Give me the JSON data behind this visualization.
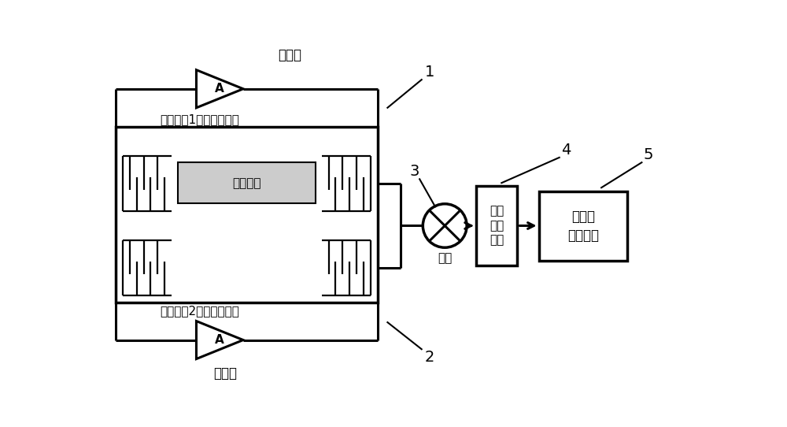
{
  "bg_color": "#ffffff",
  "line_color": "#000000",
  "lw_main": 2.2,
  "lw_thin": 1.6,
  "fs_chinese": 12,
  "fs_label": 13,
  "label_amp1": "放大器",
  "label_amp2": "放大器",
  "label_circ1": "振荡电路1（测量支路）",
  "label_circ2": "振荡电路2（参考支路）",
  "label_film": "敏感薄膜",
  "label_mixer": "混频",
  "label_amp_box": "放大\n整形\n电路",
  "label_mcu": "单片机\n频率测量",
  "label_A": "A",
  "num1": "1",
  "num2": "2",
  "num3": "3",
  "num4": "4",
  "num5": "5"
}
